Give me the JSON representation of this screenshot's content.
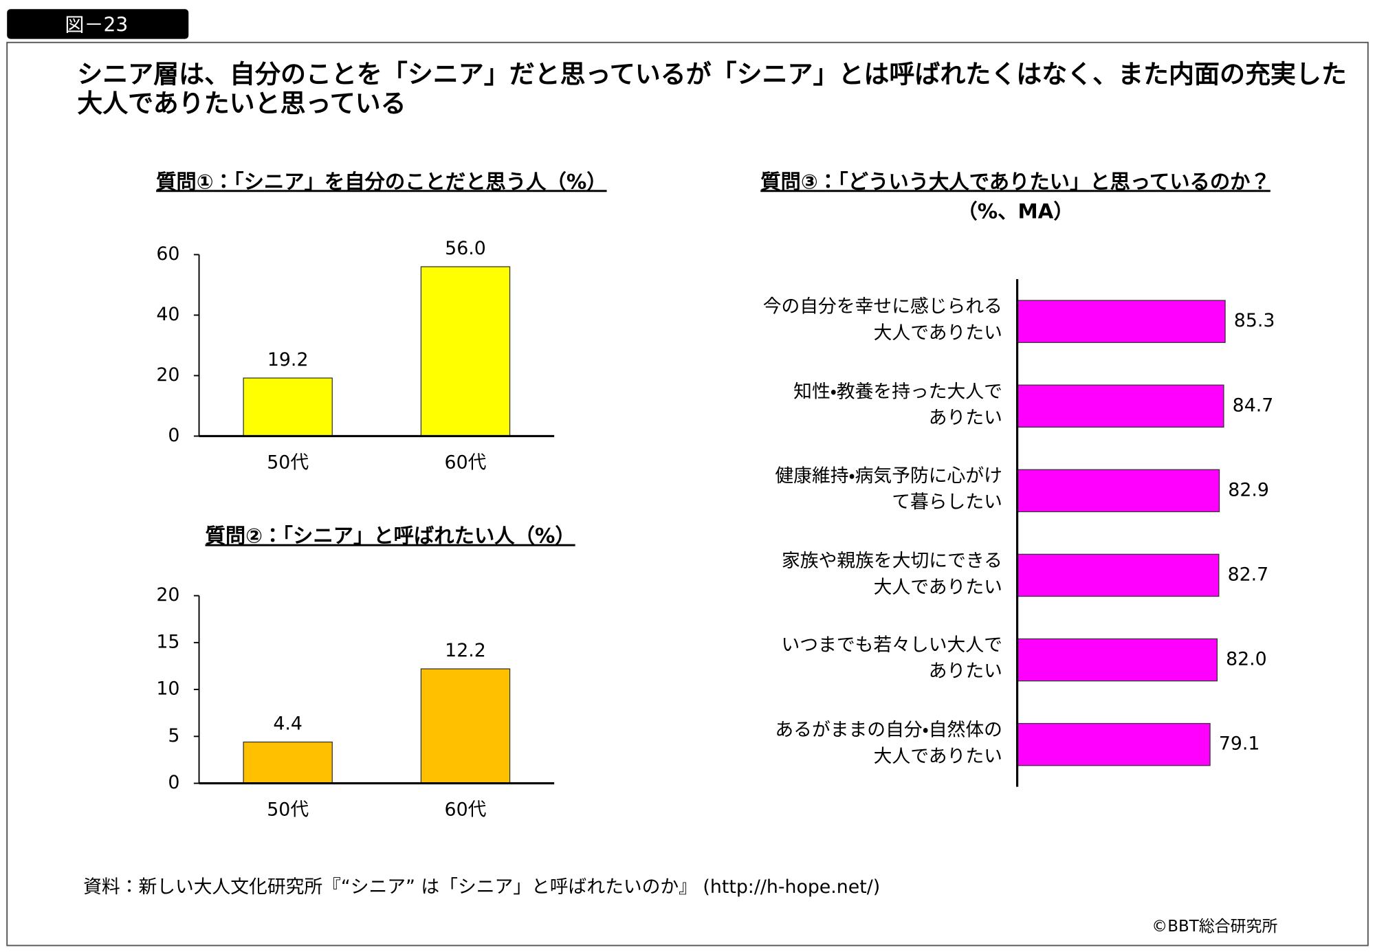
{
  "figure_label": "図－23",
  "headline": [
    "シニア層は、自分のことを「シニア」だと思っているが「シニア」とは呼ばれたくはなく、また内面の充実した",
    "大人でありたいと思っている"
  ],
  "chart_data": [
    {
      "type": "bar",
      "title": "質問①：「シニア」を自分のことだと思う人（%）",
      "categories": [
        "50代",
        "60代"
      ],
      "values": [
        19.2,
        56.0
      ],
      "value_labels": [
        "19.2",
        "56.0"
      ],
      "color": "#ffff00",
      "ylim": [
        0,
        60
      ],
      "yticks": [
        0,
        20,
        40,
        60
      ]
    },
    {
      "type": "bar",
      "title": "質問②：「シニア」と呼ばれたい人（%）",
      "categories": [
        "50代",
        "60代"
      ],
      "values": [
        4.4,
        12.2
      ],
      "color": "#ffc000",
      "ylim": [
        0,
        20
      ],
      "yticks": [
        0,
        5,
        10,
        15,
        20
      ]
    },
    {
      "type": "bar",
      "orientation": "horizontal",
      "title": "質問③：「どういう大人でありたい」と思っているのか？",
      "subtitle": "（%、MA）",
      "categories": [
        "今の自分を幸せに感じられる\n大人でありたい",
        "知性・教養を持った大人で\nありたい",
        "健康維持・病気予防に心がけ\nて暮らしたい",
        "家族や親族を大切にできる\n大人でありたい",
        "いつまでも若々しい大人で\nありたい",
        "あるがままの自分・自然体の\n大人でありたい"
      ],
      "values": [
        85.3,
        84.7,
        82.9,
        82.7,
        82.0,
        79.1
      ],
      "value_labels": [
        "85.3",
        "84.7",
        "82.9",
        "82.7",
        "82.0",
        "79.1"
      ],
      "color": "#ff00ff",
      "xlim": [
        0,
        100
      ]
    }
  ],
  "source": "資料：新しい大人文化研究所『“シニア” は「シニア」と呼ばれたいのか』 (http://h-hope.net/)",
  "copyright": "©BBT総合研究所"
}
